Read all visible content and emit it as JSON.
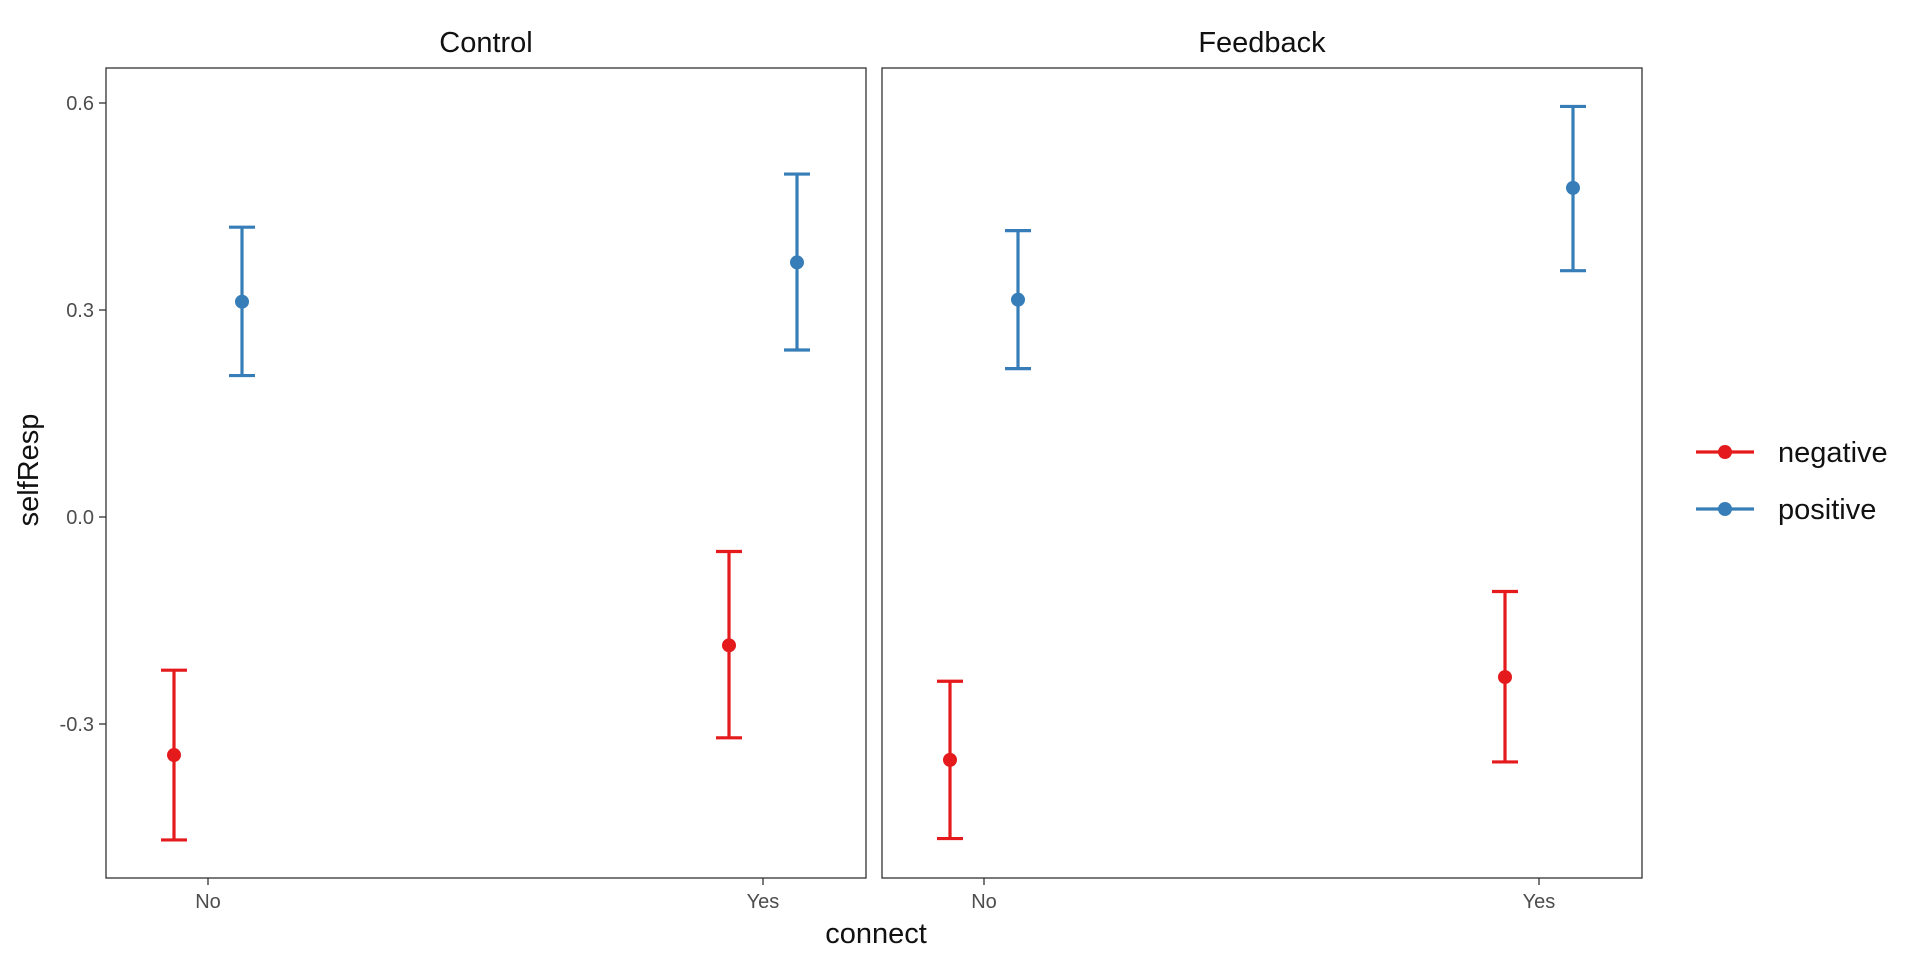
{
  "chart_data": {
    "type": "scatter",
    "subtype": "point-errorbar, faceted",
    "xlabel": "connect",
    "ylabel": "selfResp",
    "categories": [
      "No",
      "Yes"
    ],
    "yticks": [
      "0.6",
      "0.3",
      "0.0",
      "-0.3"
    ],
    "ytick_values": [
      0.6,
      0.3,
      0.0,
      -0.3
    ],
    "ylim": [
      -0.52,
      0.65
    ],
    "grid": false,
    "legend_position": "right",
    "panels": [
      {
        "title": "Control",
        "series": [
          {
            "name": "negative",
            "color": "#e41a1c",
            "values": [
              -0.345,
              -0.186
            ],
            "lower": [
              -0.468,
              -0.32
            ],
            "upper": [
              -0.222,
              -0.05
            ]
          },
          {
            "name": "positive",
            "color": "#377eb8",
            "values": [
              0.312,
              0.369
            ],
            "lower": [
              0.205,
              0.242
            ],
            "upper": [
              0.42,
              0.497
            ]
          }
        ]
      },
      {
        "title": "Feedback",
        "series": [
          {
            "name": "negative",
            "color": "#e41a1c",
            "values": [
              -0.352,
              -0.232
            ],
            "lower": [
              -0.466,
              -0.355
            ],
            "upper": [
              -0.238,
              -0.108
            ]
          },
          {
            "name": "positive",
            "color": "#377eb8",
            "values": [
              0.315,
              0.477
            ],
            "lower": [
              0.215,
              0.357
            ],
            "upper": [
              0.415,
              0.595
            ]
          }
        ]
      }
    ],
    "legend": [
      {
        "name": "negative",
        "color": "#e41a1c"
      },
      {
        "name": "positive",
        "color": "#377eb8"
      }
    ]
  }
}
